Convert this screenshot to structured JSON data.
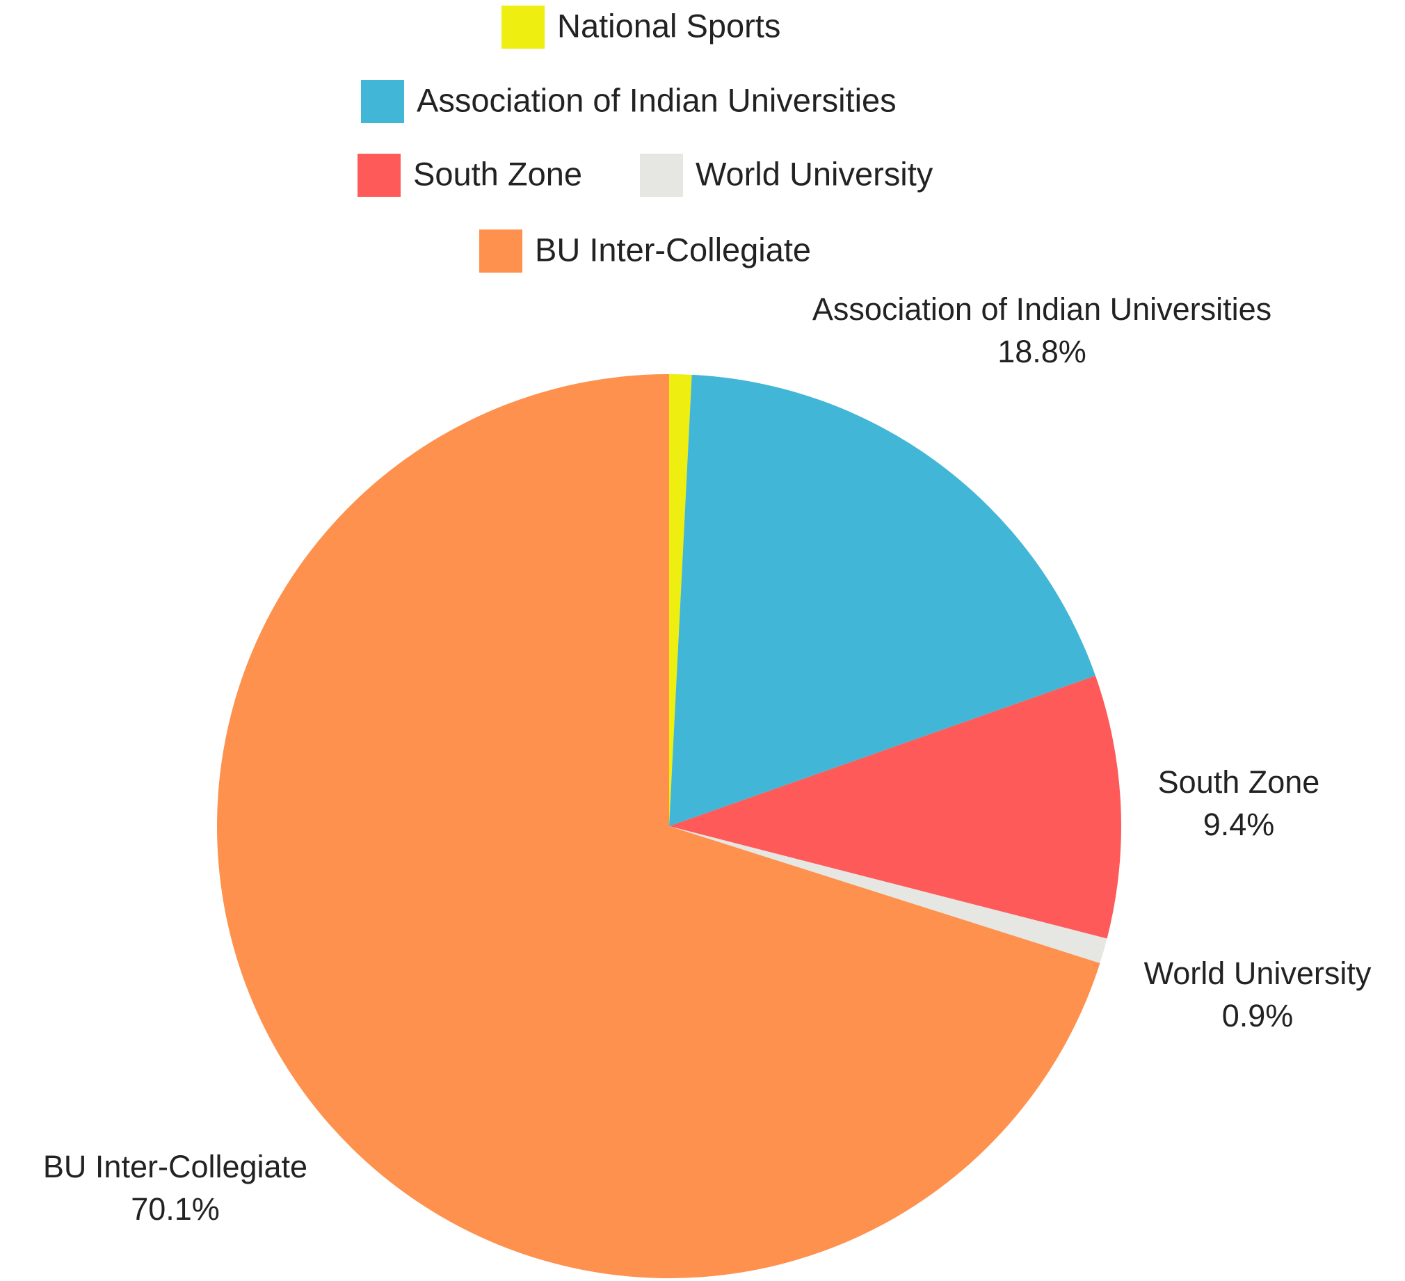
{
  "chart_data": {
    "type": "pie",
    "categories": [
      "National Sports",
      "Association of Indian Universities",
      "South Zone",
      "World University",
      "BU Inter-Collegiate"
    ],
    "values": [
      0.8,
      18.8,
      9.4,
      0.9,
      70.1
    ],
    "value_labels": [
      null,
      "18.8%",
      "9.4%",
      "0.9%",
      "70.1%"
    ],
    "colors": [
      "#eeee11",
      "#42b6d6",
      "#fe5a5a",
      "#e6e6e2",
      "#fd914d"
    ],
    "legend": "top"
  }
}
